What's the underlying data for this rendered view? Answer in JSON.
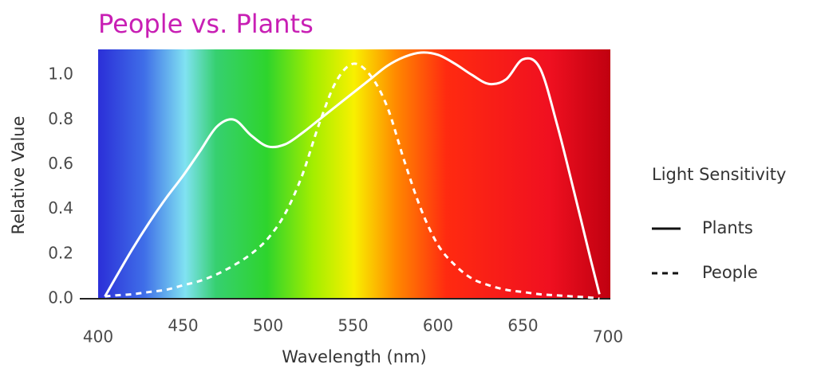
{
  "chart_data": {
    "type": "line",
    "title": "People vs. Plants",
    "x_label": "Wavelength (nm)",
    "y_label": "Relative Value",
    "legend_title": "Light Sensitivity",
    "legend_position": "right",
    "grid": false,
    "x": [
      404,
      410,
      420,
      430,
      440,
      450,
      460,
      470,
      480,
      490,
      500,
      510,
      520,
      530,
      540,
      550,
      560,
      570,
      580,
      590,
      600,
      610,
      620,
      630,
      640,
      650,
      660,
      670,
      680,
      690,
      695
    ],
    "series": [
      {
        "name": "Plants",
        "color": "#ffffff",
        "dash": "solid",
        "values": [
          0.01,
          0.09,
          0.22,
          0.34,
          0.45,
          0.55,
          0.66,
          0.77,
          0.8,
          0.73,
          0.68,
          0.69,
          0.74,
          0.8,
          0.86,
          0.92,
          0.98,
          1.04,
          1.08,
          1.1,
          1.09,
          1.05,
          1.0,
          0.96,
          0.98,
          1.07,
          1.03,
          0.78,
          0.48,
          0.17,
          0.02
        ]
      },
      {
        "name": "People",
        "color": "#ffffff",
        "dash": "dashed",
        "values": [
          0.01,
          0.015,
          0.02,
          0.03,
          0.04,
          0.06,
          0.08,
          0.11,
          0.15,
          0.2,
          0.27,
          0.38,
          0.55,
          0.78,
          0.97,
          1.05,
          1.0,
          0.86,
          0.62,
          0.4,
          0.24,
          0.15,
          0.09,
          0.06,
          0.04,
          0.03,
          0.02,
          0.015,
          0.01,
          0.005,
          0
        ]
      }
    ],
    "xlim": [
      400,
      700
    ],
    "xticks": [
      400,
      450,
      500,
      550,
      600,
      650,
      700
    ],
    "ylim": [
      0,
      1.1
    ],
    "yticks": [
      {
        "value": 0,
        "label": "0.0"
      },
      {
        "value": 0.2,
        "label": "0.2"
      },
      {
        "value": 0.4,
        "label": "0.4"
      },
      {
        "value": 0.6,
        "label": "0.6"
      },
      {
        "value": 0.8,
        "label": "0.8"
      },
      {
        "value": 1.0,
        "label": "1.0"
      }
    ]
  }
}
